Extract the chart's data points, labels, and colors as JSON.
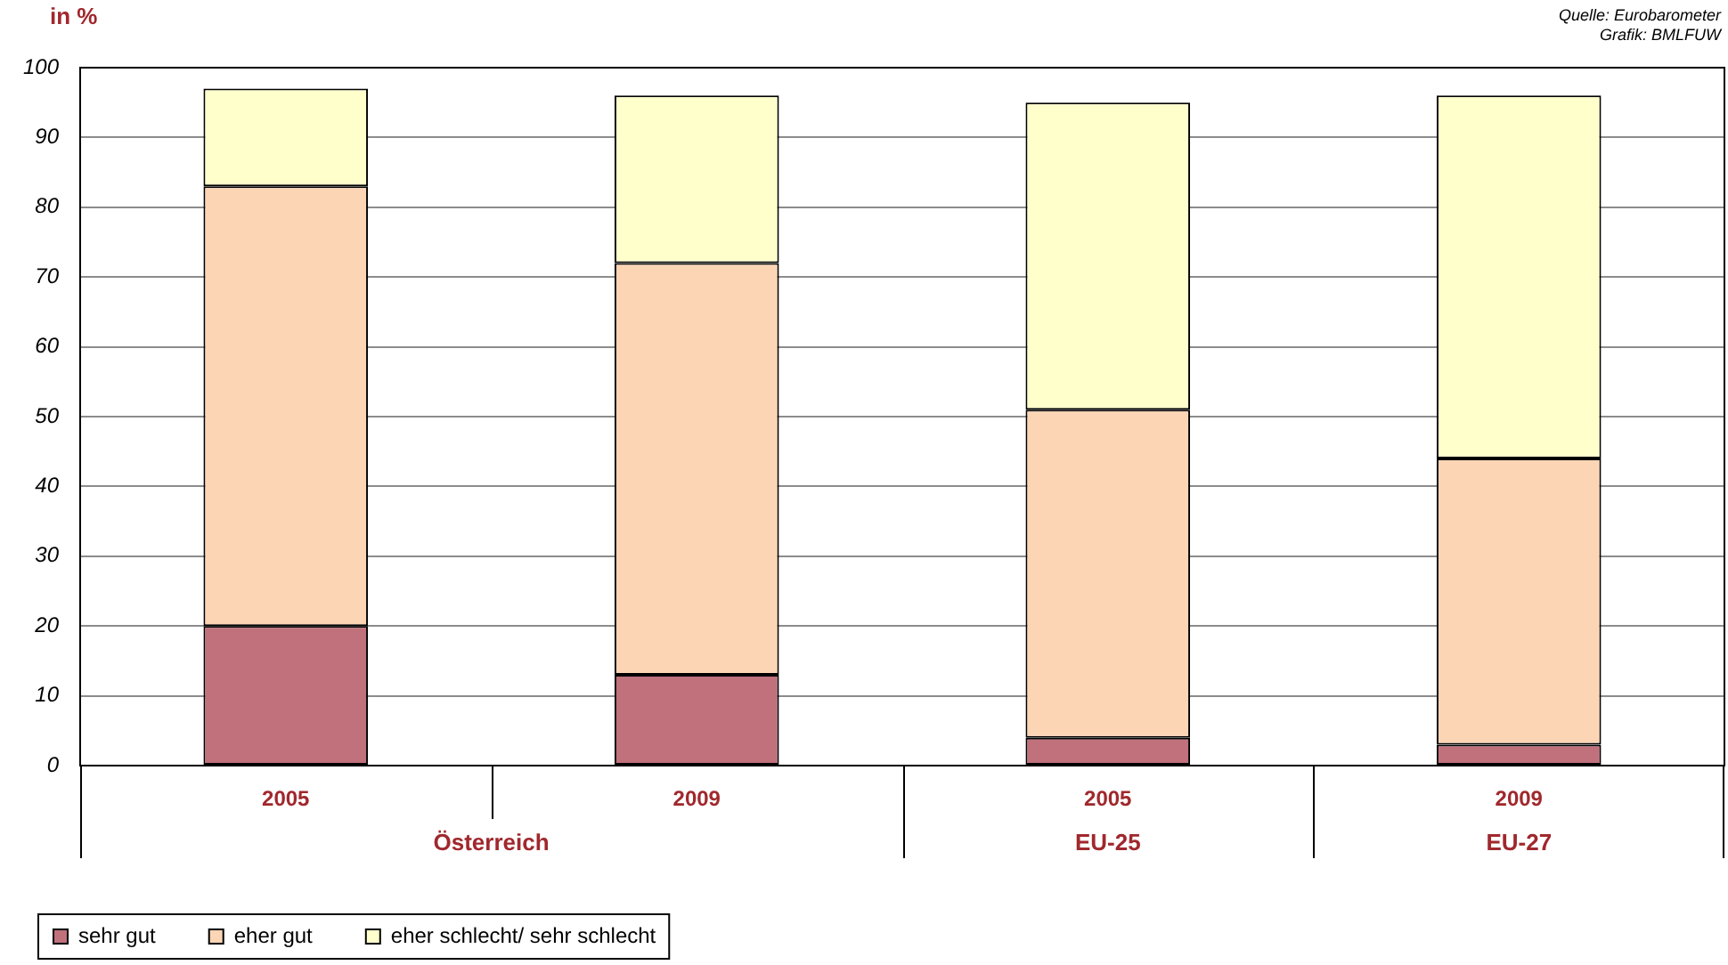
{
  "chart_data": {
    "type": "bar",
    "stacked": true,
    "ylabel": "in %",
    "categories": [
      "2005",
      "2009",
      "2005",
      "2009"
    ],
    "series": [
      {
        "name": "sehr gut",
        "color": "#c0717c",
        "values": [
          20,
          13,
          4,
          3
        ]
      },
      {
        "name": "eher gut",
        "color": "#fcd5b5",
        "values": [
          63,
          59,
          47,
          41
        ]
      },
      {
        "name": "eher schlecht/ sehr schlecht",
        "color": "#ffffcc",
        "values": [
          14,
          24,
          44,
          52
        ]
      }
    ],
    "ylim": [
      0,
      100
    ],
    "yticks": [
      0,
      10,
      20,
      30,
      40,
      50,
      60,
      70,
      80,
      90,
      100
    ],
    "grid": "y",
    "legend": "bottom",
    "annotations": [
      "Österreich",
      "EU-25",
      "EU-27",
      "Quelle: Eurobarometer",
      "Grafik: BMLFUW"
    ]
  }
}
